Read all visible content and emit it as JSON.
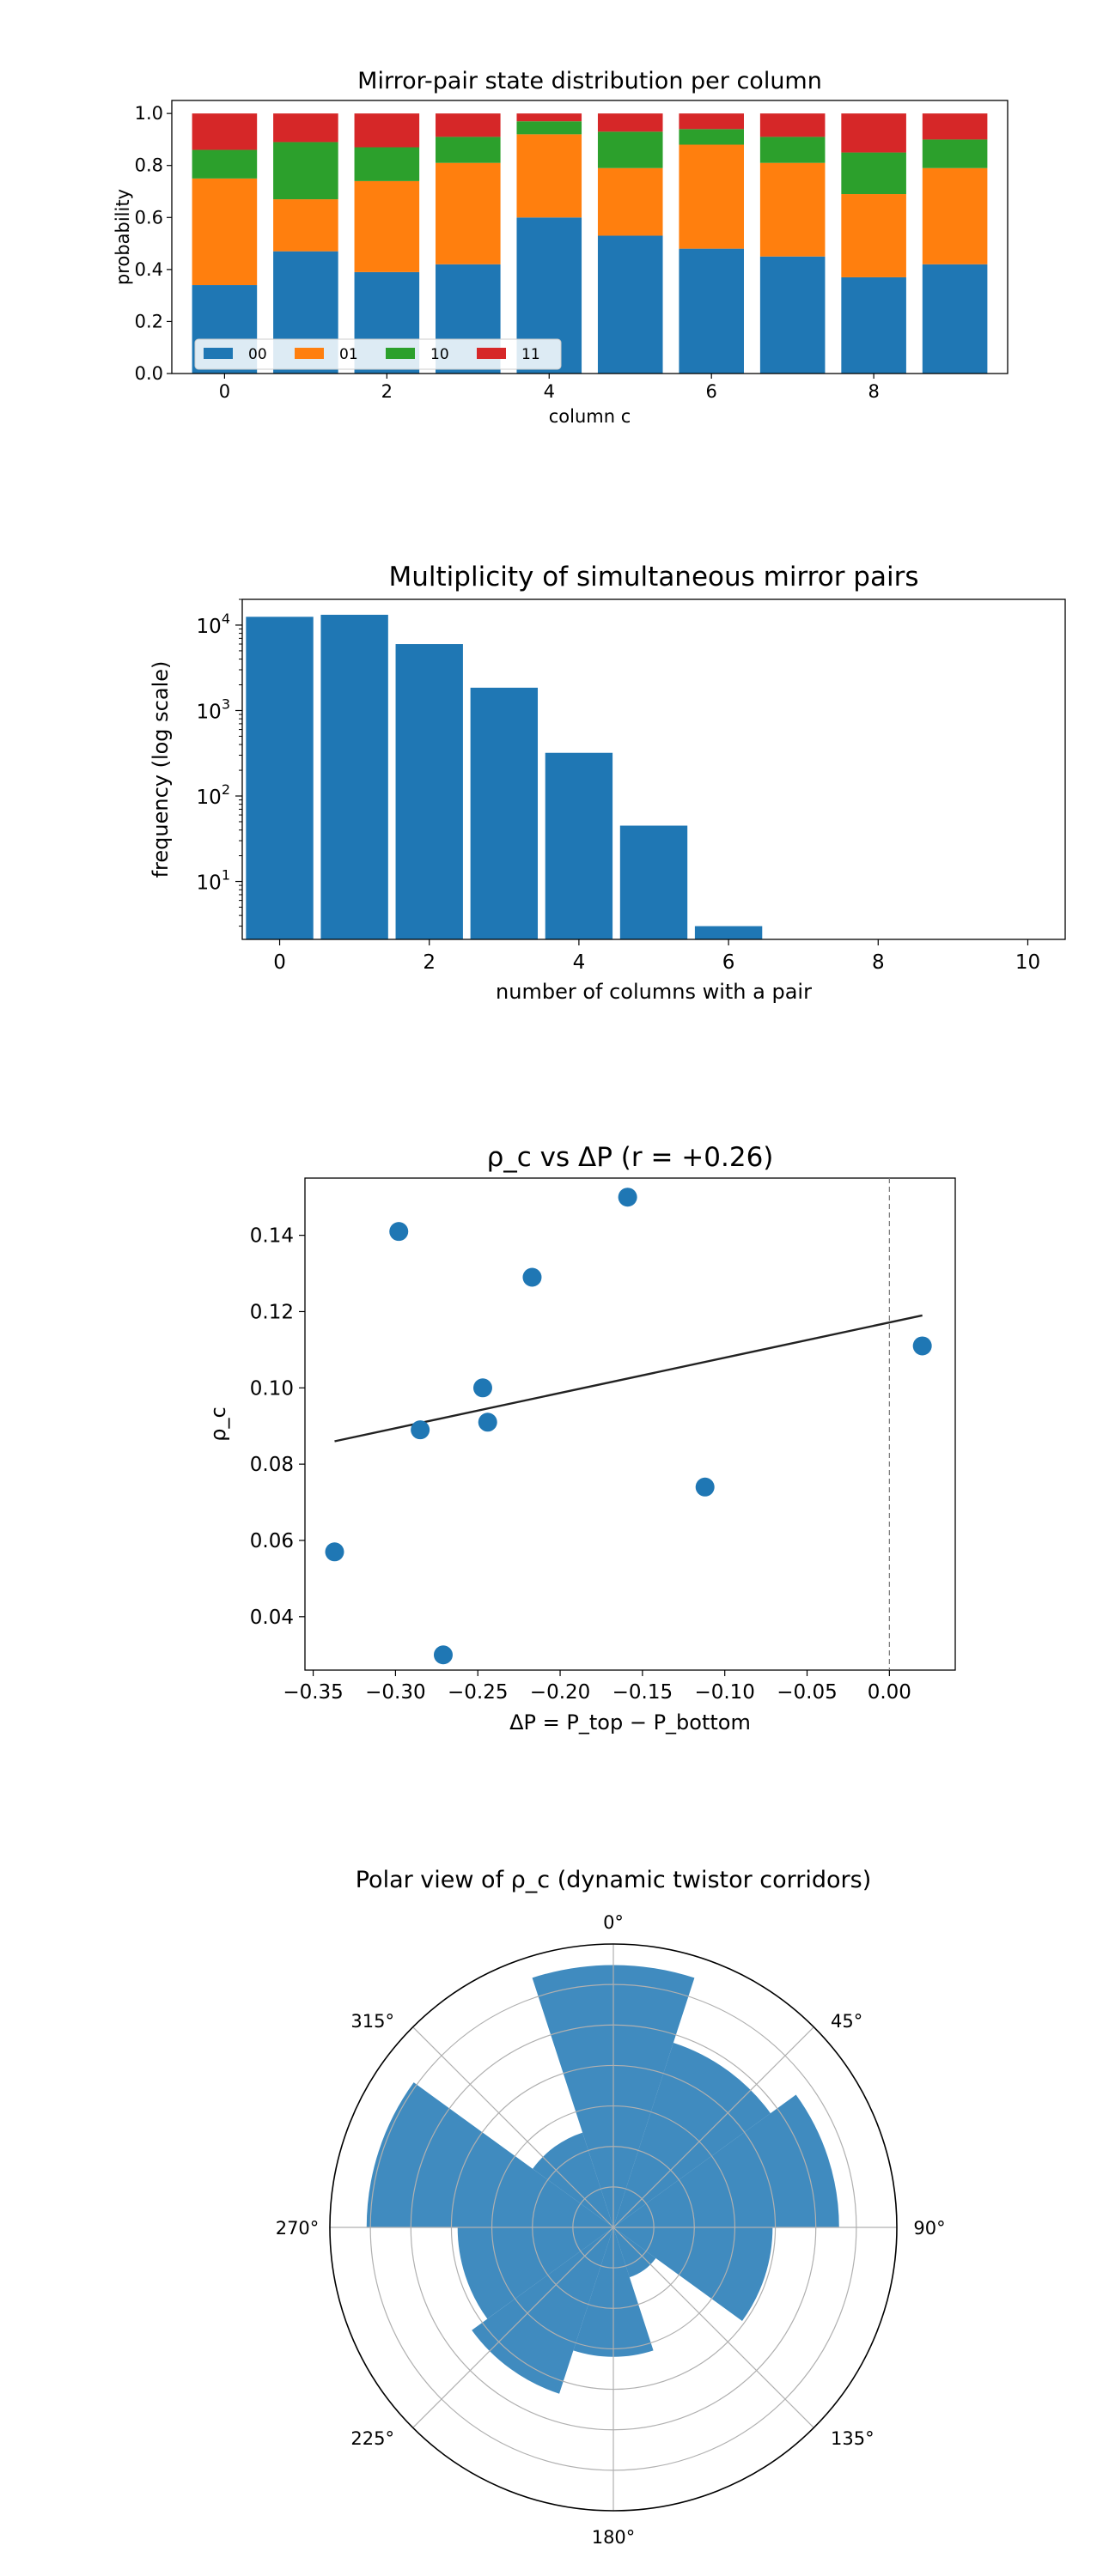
{
  "chart_data": [
    {
      "type": "bar",
      "stacked": true,
      "title": "Mirror-pair state distribution per column",
      "xlabel": "column c",
      "ylabel": "probability",
      "categories": [
        0,
        1,
        2,
        3,
        4,
        5,
        6,
        7,
        8,
        9
      ],
      "xticks": [
        "0",
        "2",
        "4",
        "6",
        "8"
      ],
      "yticks": [
        "0.0",
        "0.2",
        "0.4",
        "0.6",
        "0.8",
        "1.0"
      ],
      "ylim": [
        0,
        1.05
      ],
      "legend_loc": "lower-left",
      "series": [
        {
          "name": "00",
          "color": "#1f77b4",
          "values": [
            0.34,
            0.47,
            0.39,
            0.42,
            0.6,
            0.53,
            0.48,
            0.45,
            0.37,
            0.42
          ]
        },
        {
          "name": "01",
          "color": "#ff7f0e",
          "values": [
            0.41,
            0.2,
            0.35,
            0.39,
            0.32,
            0.26,
            0.4,
            0.36,
            0.32,
            0.37
          ]
        },
        {
          "name": "10",
          "color": "#2ca02c",
          "values": [
            0.11,
            0.22,
            0.13,
            0.1,
            0.05,
            0.14,
            0.06,
            0.1,
            0.16,
            0.11
          ]
        },
        {
          "name": "11",
          "color": "#d62728",
          "values": [
            0.14,
            0.11,
            0.13,
            0.09,
            0.03,
            0.07,
            0.06,
            0.09,
            0.15,
            0.1
          ]
        }
      ]
    },
    {
      "type": "bar",
      "title": "Multiplicity of simultaneous mirror pairs",
      "xlabel": "number of columns with a pair",
      "ylabel": "frequency (log scale)",
      "yscale": "log",
      "categories": [
        0,
        1,
        2,
        3,
        4,
        5,
        6
      ],
      "values": [
        12500,
        13200,
        6000,
        1850,
        320,
        45,
        3
      ],
      "color": "#1f77b4",
      "xlim": [
        -0.5,
        10.5
      ],
      "ylim": [
        2.1,
        20000
      ],
      "xticks": [
        "0",
        "2",
        "4",
        "6",
        "8",
        "10"
      ],
      "yticks": [
        {
          "base": "10",
          "exp": "1"
        },
        {
          "base": "10",
          "exp": "2"
        },
        {
          "base": "10",
          "exp": "3"
        },
        {
          "base": "10",
          "exp": "4"
        }
      ]
    },
    {
      "type": "scatter",
      "title": "ρ_c vs ΔP  (r = +0.26)",
      "xlabel": "ΔP = P_top − P_bottom",
      "ylabel": "ρ_c",
      "x": [
        -0.337,
        -0.298,
        -0.285,
        -0.271,
        -0.247,
        -0.244,
        -0.217,
        -0.159,
        -0.112,
        0.02
      ],
      "y": [
        0.057,
        0.141,
        0.089,
        0.03,
        0.1,
        0.091,
        0.129,
        0.15,
        0.074,
        0.111
      ],
      "color": "#1f77b4",
      "fit_line": {
        "x": [
          -0.337,
          0.02
        ],
        "y": [
          0.086,
          0.119
        ]
      },
      "vline_x": 0.0,
      "xlim": [
        -0.355,
        0.04
      ],
      "ylim": [
        0.026,
        0.155
      ],
      "xticks": [
        "−0.35",
        "−0.30",
        "−0.25",
        "−0.20",
        "−0.15",
        "−0.10",
        "−0.05",
        "0.00"
      ],
      "yticks": [
        "0.04",
        "0.06",
        "0.08",
        "0.10",
        "0.12",
        "0.14"
      ]
    },
    {
      "type": "polar-bar",
      "title": "Polar view of ρ_c  (dynamic twistor corridors)",
      "theta_zero": "N",
      "theta_direction": "clockwise",
      "color": "#1f77b4",
      "angle_labels": [
        "0°",
        "45°",
        "90°",
        "135°",
        "180°",
        "225°",
        "270°",
        "315°"
      ],
      "theta_deg": [
        0,
        36,
        72,
        108,
        144,
        180,
        216,
        252,
        288,
        324
      ],
      "values": [
        0.15,
        0.111,
        0.129,
        0.091,
        0.03,
        0.074,
        0.1,
        0.089,
        0.141,
        0.057
      ],
      "rmax": 0.162,
      "rgrid_count": 7
    }
  ]
}
